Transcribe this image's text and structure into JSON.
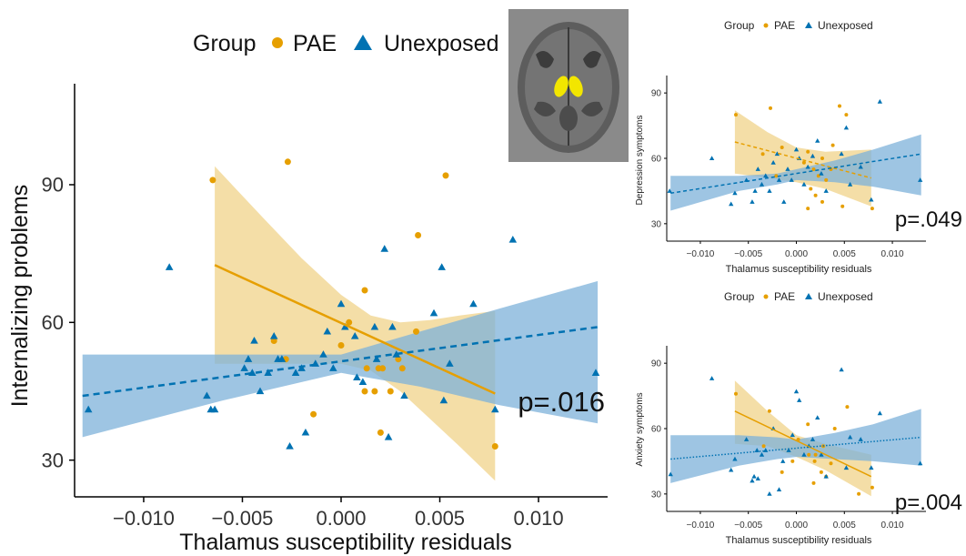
{
  "colors": {
    "pae": "#E69F00",
    "unexposed": "#0072B2",
    "pae_band": "#F0D38A",
    "unexposed_band": "#7DB2D9"
  },
  "chart_data": [
    {
      "type": "scatter",
      "xlabel": "Thalamus susceptibility residuals",
      "ylabel": "Internalizing problems",
      "xticks": [
        "−0.010",
        "−0.005",
        "0.000",
        "0.005",
        "0.010"
      ],
      "yticks": [
        "30",
        "60",
        "90"
      ],
      "xlim": [
        -0.0135,
        0.0135
      ],
      "ylim": [
        22,
        112
      ],
      "legend": {
        "title": "Group",
        "labels": [
          "PAE",
          "Unexposed"
        ],
        "placement": "top"
      },
      "p_label": "p=.016",
      "series": [
        {
          "name": "PAE",
          "marker": "circle",
          "points": [
            [
              -0.0065,
              91
            ],
            [
              -0.0027,
              95
            ],
            [
              0.0053,
              92
            ],
            [
              0.0039,
              79
            ],
            [
              0.0012,
              67
            ],
            [
              0.0004,
              60
            ],
            [
              0.0038,
              58
            ],
            [
              0.0013,
              50
            ],
            [
              0.0019,
              50
            ],
            [
              0.0021,
              50
            ],
            [
              0.0029,
              52
            ],
            [
              0.0031,
              50
            ],
            [
              0.0012,
              45
            ],
            [
              0.0017,
              45
            ],
            [
              0.0025,
              45
            ],
            [
              0.002,
              36
            ],
            [
              -0.0034,
              56
            ],
            [
              -0.0028,
              52
            ],
            [
              0.0,
              55
            ],
            [
              0.0078,
              33
            ],
            [
              -0.0014,
              40
            ]
          ],
          "fit": {
            "x": [
              -0.0064,
              0.0078
            ],
            "y": [
              72.5,
              44.5
            ]
          },
          "band": {
            "x": [
              -0.0064,
              -0.004,
              -0.002,
              0.0,
              0.0015,
              0.003,
              0.0045,
              0.006,
              0.0078
            ],
            "lower": [
              51,
              51,
              51,
              51,
              49.5,
              45,
              39,
              33,
              25.5
            ],
            "upper": [
              94,
              83,
              74,
              66,
              61.5,
              60,
              60.5,
              61.5,
              62.5
            ]
          }
        },
        {
          "name": "Unexposed",
          "marker": "triangle",
          "points": [
            [
              -0.0128,
              41
            ],
            [
              -0.0087,
              72
            ],
            [
              -0.0068,
              44
            ],
            [
              -0.0066,
              41
            ],
            [
              -0.0064,
              41
            ],
            [
              -0.0049,
              50
            ],
            [
              -0.0047,
              52
            ],
            [
              -0.0044,
              56
            ],
            [
              -0.0041,
              45
            ],
            [
              -0.0037,
              49
            ],
            [
              -0.0034,
              57
            ],
            [
              -0.0032,
              52
            ],
            [
              -0.003,
              52
            ],
            [
              -0.0026,
              33
            ],
            [
              -0.0023,
              49
            ],
            [
              -0.002,
              50
            ],
            [
              -0.0018,
              36
            ],
            [
              -0.0013,
              51
            ],
            [
              -0.0009,
              53
            ],
            [
              -0.0007,
              58
            ],
            [
              -0.0004,
              50
            ],
            [
              0.0,
              64
            ],
            [
              0.0002,
              59
            ],
            [
              0.0008,
              48
            ],
            [
              0.0011,
              47
            ],
            [
              0.0017,
              59
            ],
            [
              0.0018,
              52
            ],
            [
              0.0022,
              76
            ],
            [
              0.0026,
              59
            ],
            [
              0.0028,
              53
            ],
            [
              0.0024,
              35
            ],
            [
              0.0032,
              44
            ],
            [
              0.0047,
              62
            ],
            [
              0.0051,
              72
            ],
            [
              0.0052,
              43
            ],
            [
              0.0055,
              51
            ],
            [
              0.0067,
              64
            ],
            [
              0.0078,
              41
            ],
            [
              0.0087,
              78
            ],
            [
              0.0129,
              49
            ],
            [
              -0.0045,
              49
            ],
            [
              0.0007,
              57
            ]
          ],
          "fit": {
            "x": [
              -0.0131,
              0.013
            ],
            "y": [
              44,
              59
            ]
          },
          "band": {
            "x": [
              -0.0131,
              -0.006,
              -0.002,
              0.0,
              0.004,
              0.008,
              0.013
            ],
            "lower": [
              35,
              43,
              47,
              49,
              46,
              42,
              38
            ],
            "upper": [
              53,
              53,
              53,
              53,
              58,
              63,
              69
            ]
          }
        }
      ]
    },
    {
      "type": "scatter",
      "xlabel": "Thalamus susceptibility residuals",
      "ylabel": "Depression symptoms",
      "xticks": [
        "−0.010",
        "−0.005",
        "0.000",
        "0.005",
        "0.010"
      ],
      "yticks": [
        "30",
        "60",
        "90"
      ],
      "xlim": [
        -0.0135,
        0.0135
      ],
      "ylim": [
        22,
        98
      ],
      "legend": {
        "title": "Group",
        "labels": [
          "PAE",
          "Unexposed"
        ],
        "placement": "top"
      },
      "p_label": "p=.049",
      "series": [
        {
          "name": "PAE",
          "marker": "circle",
          "points": [
            [
              -0.0063,
              80
            ],
            [
              -0.0027,
              83
            ],
            [
              0.0045,
              84
            ],
            [
              0.0052,
              80
            ],
            [
              0.0038,
              66
            ],
            [
              -0.0035,
              62
            ],
            [
              -0.0015,
              65
            ],
            [
              0.0012,
              63
            ],
            [
              0.0027,
              60
            ],
            [
              0.0008,
              58
            ],
            [
              0.0018,
              55
            ],
            [
              0.0036,
              55
            ],
            [
              0.0023,
              52
            ],
            [
              0.0031,
              50
            ],
            [
              -0.0021,
              52
            ],
            [
              0.0015,
              46
            ],
            [
              0.002,
              43
            ],
            [
              0.0027,
              40
            ],
            [
              0.0012,
              37
            ],
            [
              0.0048,
              38
            ],
            [
              0.0079,
              37
            ]
          ],
          "fit": {
            "x": [
              -0.0064,
              0.0078
            ],
            "y": [
              67.5,
              51
            ]
          },
          "band": {
            "x": [
              -0.0064,
              -0.003,
              0.0,
              0.003,
              0.0078
            ],
            "lower": [
              53,
              51,
              49,
              46,
              38
            ],
            "upper": [
              82,
              72,
              65,
              63,
              64
            ]
          }
        },
        {
          "name": "Unexposed",
          "marker": "triangle",
          "points": [
            [
              -0.0132,
              45
            ],
            [
              -0.0088,
              60
            ],
            [
              -0.0068,
              39
            ],
            [
              -0.0064,
              44
            ],
            [
              -0.0052,
              50
            ],
            [
              -0.0046,
              40
            ],
            [
              -0.004,
              55
            ],
            [
              -0.0036,
              48
            ],
            [
              -0.0032,
              52
            ],
            [
              -0.0028,
              45
            ],
            [
              -0.0024,
              58
            ],
            [
              -0.002,
              62
            ],
            [
              -0.0018,
              50
            ],
            [
              -0.0013,
              40
            ],
            [
              -0.0009,
              55
            ],
            [
              -0.0005,
              50
            ],
            [
              0.0,
              64
            ],
            [
              0.0003,
              60
            ],
            [
              0.0008,
              48
            ],
            [
              0.0012,
              56
            ],
            [
              0.0017,
              61
            ],
            [
              0.0022,
              68
            ],
            [
              0.0026,
              53
            ],
            [
              0.0031,
              45
            ],
            [
              0.0047,
              62
            ],
            [
              0.0052,
              74
            ],
            [
              0.0056,
              48
            ],
            [
              0.0067,
              56
            ],
            [
              0.0078,
              41
            ],
            [
              0.0087,
              86
            ],
            [
              0.0129,
              50
            ],
            [
              -0.0043,
              45
            ]
          ],
          "fit": {
            "x": [
              -0.0131,
              0.013
            ],
            "y": [
              44,
              62
            ]
          },
          "band": {
            "x": [
              -0.0131,
              -0.006,
              -0.002,
              0.0,
              0.004,
              0.008,
              0.013
            ],
            "lower": [
              36,
              45,
              48,
              50,
              49,
              47,
              43
            ],
            "upper": [
              52,
              52,
              53,
              55,
              59,
              64,
              71
            ]
          }
        }
      ]
    },
    {
      "type": "scatter",
      "xlabel": "Thalamus susceptibility residuals",
      "ylabel": "Anxiety symptoms",
      "xticks": [
        "−0.010",
        "−0.005",
        "0.000",
        "0.005",
        "0.010"
      ],
      "yticks": [
        "30",
        "60",
        "90"
      ],
      "xlim": [
        -0.0135,
        0.0135
      ],
      "ylim": [
        22,
        98
      ],
      "legend": {
        "title": "Group",
        "labels": [
          "PAE",
          "Unexposed"
        ],
        "placement": "top"
      },
      "p_label": "p=.004",
      "series": [
        {
          "name": "PAE",
          "marker": "circle",
          "points": [
            [
              -0.0063,
              76
            ],
            [
              0.0053,
              70
            ],
            [
              -0.0028,
              68
            ],
            [
              0.004,
              60
            ],
            [
              0.0012,
              62
            ],
            [
              0.0002,
              55
            ],
            [
              -0.0034,
              52
            ],
            [
              0.0013,
              48
            ],
            [
              0.0019,
              45
            ],
            [
              0.0026,
              40
            ],
            [
              0.0031,
              38
            ],
            [
              0.0018,
              35
            ],
            [
              -0.0015,
              40
            ],
            [
              0.002,
              48
            ],
            [
              0.0036,
              44
            ],
            [
              0.0079,
              33
            ],
            [
              0.0065,
              30
            ],
            [
              -0.0004,
              45
            ],
            [
              0.0028,
              52
            ]
          ],
          "fit": {
            "x": [
              -0.0064,
              0.0078
            ],
            "y": [
              68,
              38
            ]
          },
          "band": {
            "x": [
              -0.0064,
              -0.003,
              0.0,
              0.003,
              0.0078
            ],
            "lower": [
              53,
              52,
              47,
              41,
              29
            ],
            "upper": [
              82,
              68,
              57,
              53,
              48
            ]
          }
        },
        {
          "name": "Unexposed",
          "marker": "triangle",
          "points": [
            [
              -0.0131,
              39
            ],
            [
              -0.0088,
              83
            ],
            [
              -0.0068,
              41
            ],
            [
              -0.0064,
              46
            ],
            [
              -0.0052,
              55
            ],
            [
              -0.0046,
              36
            ],
            [
              -0.0044,
              38
            ],
            [
              -0.004,
              37
            ],
            [
              -0.0036,
              48
            ],
            [
              -0.0032,
              50
            ],
            [
              -0.0028,
              30
            ],
            [
              -0.0024,
              60
            ],
            [
              -0.0018,
              32
            ],
            [
              -0.0014,
              45
            ],
            [
              -0.0008,
              50
            ],
            [
              -0.0004,
              57
            ],
            [
              0.0,
              77
            ],
            [
              0.0003,
              73
            ],
            [
              0.0008,
              48
            ],
            [
              0.0013,
              52
            ],
            [
              0.0017,
              55
            ],
            [
              0.0022,
              65
            ],
            [
              0.0026,
              48
            ],
            [
              0.0031,
              38
            ],
            [
              0.0047,
              87
            ],
            [
              0.0052,
              42
            ],
            [
              0.0056,
              56
            ],
            [
              0.0067,
              55
            ],
            [
              0.0078,
              42
            ],
            [
              0.0087,
              67
            ],
            [
              0.0129,
              44
            ],
            [
              -0.0041,
              50
            ]
          ],
          "fit": {
            "x": [
              -0.0131,
              0.013
            ],
            "y": [
              46,
              56
            ]
          },
          "band": {
            "x": [
              -0.0131,
              -0.006,
              -0.002,
              0.0,
              0.004,
              0.008,
              0.013
            ],
            "lower": [
              35,
              43,
              46,
              47,
              46,
              45,
              43
            ],
            "upper": [
              57,
              57,
              56,
              55,
              58,
              62,
              69
            ]
          }
        }
      ]
    }
  ]
}
